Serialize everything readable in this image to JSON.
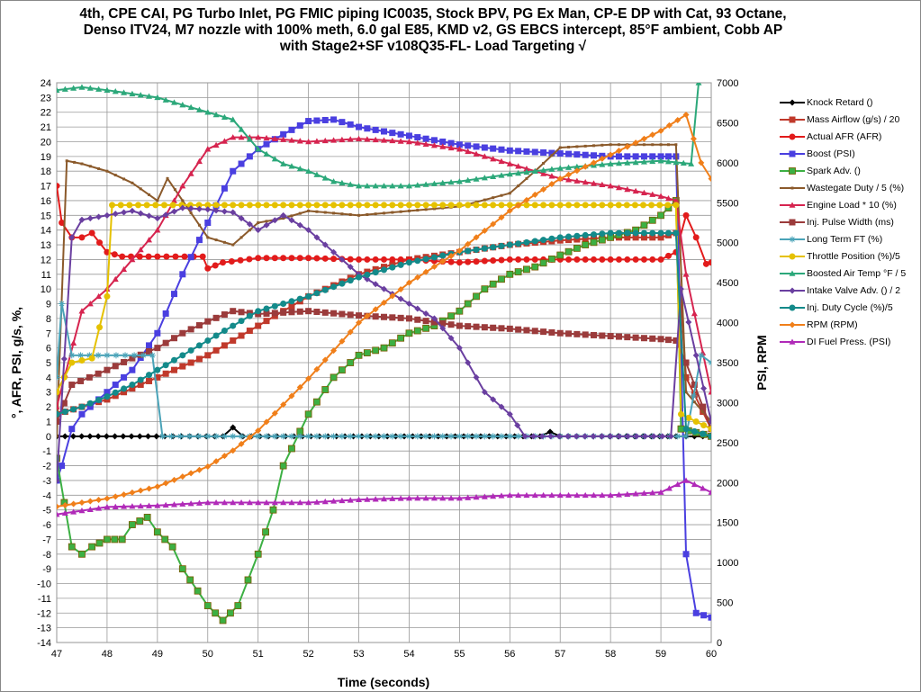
{
  "chart_data": {
    "type": "line",
    "title": "4th, CPE CAI, PG Turbo Inlet, PG FMIC piping  IC0035, Stock BPV, PG Ex Man, CP-E DP with Cat, 93 Octane, Denso ITV24, M7 nozzle with 100% meth,  6.0 gal E85, KMD v2, GS EBCS intercept,  85°F ambient, Cobb AP with Stage2+SF v108Q35-FL-   Load Targeting √",
    "xlabel": "Time (seconds)",
    "ylabel": "°, AFR, PSI, g/s, %,",
    "y2label": "PSI, RPM",
    "xlim": [
      47,
      60
    ],
    "ylim": [
      -14,
      24
    ],
    "y2lim": [
      0,
      7000
    ],
    "grid": true,
    "legend": "right",
    "series": [
      {
        "name": "Knock Retard ()",
        "color": "#000000",
        "marker": "diamond",
        "axis": "left",
        "x": [
          47,
          50.3,
          50.5,
          50.7,
          56.6,
          56.8,
          57,
          59.3,
          59.5,
          60
        ],
        "y": [
          0,
          0,
          0.6,
          0,
          0,
          0.3,
          0,
          0,
          0,
          0
        ]
      },
      {
        "name": "Mass Airflow (g/s) / 20",
        "color": "#c0392b",
        "marker": "square",
        "axis": "left",
        "x": [
          47,
          48,
          49,
          50,
          51,
          52,
          53,
          54,
          55,
          56,
          57,
          58,
          59,
          59.3,
          59.5,
          60
        ],
        "y": [
          1.5,
          2.5,
          4,
          5.5,
          7.5,
          9.5,
          11,
          12,
          12.5,
          13,
          13.3,
          13.5,
          13.5,
          13.8,
          4,
          0.5
        ]
      },
      {
        "name": "Actual AFR (AFR)",
        "color": "#e21b1b",
        "marker": "circle",
        "axis": "left",
        "x": [
          47,
          47.1,
          47.3,
          47.5,
          47.7,
          48,
          48.3,
          49,
          49.9,
          50,
          50.3,
          51,
          52,
          53,
          54,
          55,
          56,
          57,
          58,
          59,
          59.3,
          59.5,
          59.7,
          59.9,
          60
        ],
        "y": [
          17,
          14.5,
          13.5,
          13.5,
          13.8,
          12.5,
          12.2,
          12.2,
          12.2,
          11.4,
          11.8,
          12.1,
          12.1,
          12,
          12,
          11.8,
          12,
          12,
          12,
          12,
          12.5,
          15,
          13.5,
          11.7,
          11.8
        ]
      },
      {
        "name": "Boost (PSI)",
        "color": "#4a3fe0",
        "marker": "square",
        "axis": "left",
        "x": [
          47,
          47.1,
          47.3,
          47.5,
          48,
          48.5,
          49,
          49.5,
          50,
          50.5,
          51,
          51.5,
          52,
          52.5,
          53,
          53.5,
          54,
          55,
          56,
          57,
          58,
          59,
          59.3,
          59.5,
          59.7,
          60
        ],
        "y": [
          -3,
          -2,
          0.5,
          1.5,
          3,
          4.5,
          7,
          11,
          14.5,
          18,
          19.5,
          20.5,
          21.4,
          21.5,
          21,
          20.7,
          20.4,
          19.8,
          19.4,
          19.2,
          19,
          19,
          19,
          -8,
          -12,
          -12.3
        ]
      },
      {
        "name": "Spark Adv. ()",
        "color": "#3cb043",
        "marker": "square",
        "axis": "left",
        "x": [
          47,
          47.3,
          47.5,
          47.7,
          48,
          48.3,
          48.5,
          48.8,
          49,
          49.3,
          49.5,
          49.8,
          50,
          50.3,
          50.6,
          51,
          51.3,
          51.5,
          52,
          52.5,
          53,
          53.5,
          54,
          54.5,
          55,
          55.5,
          56,
          56.5,
          57,
          57.5,
          58,
          58.5,
          59,
          59.3,
          59.4,
          60
        ],
        "y": [
          -1.5,
          -7.5,
          -8,
          -7.5,
          -7,
          -7,
          -6,
          -5.5,
          -6.5,
          -7.5,
          -9,
          -10.5,
          -11.5,
          -12.5,
          -11.5,
          -8,
          -5,
          -2,
          1.5,
          4,
          5.5,
          6,
          7,
          7.5,
          8.5,
          10,
          11,
          11.5,
          12.3,
          13,
          13.5,
          14,
          15,
          16,
          0.5,
          0
        ]
      },
      {
        "name": "Wastegate Duty / 5 (%)",
        "color": "#8b5a2b",
        "marker": "small",
        "axis": "left",
        "x": [
          47,
          47.2,
          47.5,
          48,
          48.5,
          49,
          49.2,
          49.5,
          50,
          50.5,
          51,
          51.5,
          52,
          53,
          54,
          55,
          56,
          56.5,
          57,
          58,
          59,
          59.3,
          59.5,
          60
        ],
        "y": [
          0,
          18.7,
          18.5,
          18,
          17.2,
          16,
          17.5,
          16,
          13.5,
          13,
          14.5,
          14.8,
          15.3,
          15,
          15.3,
          15.6,
          16.5,
          18,
          19.6,
          19.8,
          19.8,
          19.8,
          3,
          1
        ]
      },
      {
        "name": "Engine Load * 10 (%)",
        "color": "#d6244f",
        "marker": "triangle",
        "axis": "left",
        "x": [
          47,
          47.5,
          48,
          48.5,
          49,
          49.5,
          50,
          50.5,
          51,
          52,
          53,
          54,
          55,
          56,
          57,
          58,
          59,
          59.3,
          59.5,
          60
        ],
        "y": [
          2,
          8.5,
          10,
          12,
          14,
          17,
          19.5,
          20.3,
          20.3,
          20,
          20.2,
          20,
          19.5,
          18.5,
          17.5,
          17,
          16.3,
          16,
          11,
          3
        ]
      },
      {
        "name": "Inj. Pulse Width (ms)",
        "color": "#9b3b3b",
        "marker": "square",
        "axis": "left",
        "x": [
          47,
          47.3,
          48,
          48.5,
          49,
          49.5,
          50,
          50.5,
          51,
          52,
          53,
          54,
          55,
          56,
          57,
          58,
          59,
          59.3,
          59.5,
          60
        ],
        "y": [
          1,
          3.5,
          4.5,
          5.3,
          6,
          7,
          7.8,
          8.5,
          8.3,
          8.5,
          8.2,
          8,
          7.5,
          7.3,
          7,
          6.8,
          6.6,
          6.5,
          5,
          0.5
        ]
      },
      {
        "name": "Long Term FT (%)",
        "color": "#4aa3b8",
        "marker": "star",
        "axis": "left",
        "x": [
          47,
          47.1,
          47.3,
          48,
          48.9,
          49.1,
          50,
          52,
          54,
          56,
          58,
          59.5,
          59.8,
          60
        ],
        "y": [
          4,
          9,
          5.5,
          5.5,
          5.5,
          0,
          0,
          0,
          0,
          0,
          0,
          0,
          5.5,
          5
        ]
      },
      {
        "name": "Throttle Position (%)/5",
        "color": "#e5c100",
        "marker": "circle",
        "axis": "left",
        "x": [
          47,
          47.3,
          47.7,
          48,
          48.1,
          50,
          52,
          54,
          56,
          58,
          59.3,
          59.4,
          60
        ],
        "y": [
          3,
          5,
          5.3,
          9.5,
          15.7,
          15.7,
          15.7,
          15.7,
          15.7,
          15.7,
          15.7,
          1.5,
          0.5
        ]
      },
      {
        "name": "Boosted Air Temp °F / 5",
        "color": "#2ca87a",
        "marker": "triangle",
        "axis": "left",
        "x": [
          47,
          47.5,
          48,
          49,
          50,
          50.5,
          51,
          51.5,
          52,
          52.5,
          53,
          54,
          55,
          56,
          57,
          58,
          59,
          59.6,
          59.75
        ],
        "y": [
          23.5,
          23.7,
          23.5,
          23,
          22,
          21.5,
          19.5,
          18.5,
          18,
          17.3,
          17,
          17,
          17.3,
          17.8,
          18.2,
          18.5,
          18.7,
          18.5,
          24
        ]
      },
      {
        "name": "Intake Valve Adv. () / 2",
        "color": "#6a3fa0",
        "marker": "diamond",
        "axis": "left",
        "x": [
          47,
          47.3,
          47.5,
          48,
          48.5,
          49,
          49.5,
          50,
          50.5,
          51,
          51.5,
          52,
          52.5,
          53,
          53.5,
          54,
          54.5,
          55,
          55.5,
          56,
          56.3,
          58,
          59.2,
          59.4,
          60
        ],
        "y": [
          -3,
          13.5,
          14.7,
          15,
          15.3,
          14.8,
          15.5,
          15.4,
          15.2,
          14,
          15,
          14,
          12.5,
          11,
          10,
          9,
          8,
          6,
          3,
          1.5,
          0,
          0,
          0,
          10,
          1
        ]
      },
      {
        "name": "Inj. Duty Cycle (%)/5",
        "color": "#138a8a",
        "marker": "circle",
        "axis": "left",
        "x": [
          47,
          47.5,
          48,
          48.5,
          49,
          49.5,
          50,
          50.5,
          51,
          52,
          53,
          54,
          55,
          56,
          57,
          58,
          59,
          59.3,
          59.5,
          60
        ],
        "y": [
          1.5,
          2,
          2.7,
          3.5,
          4.5,
          5.5,
          6.5,
          7.5,
          8.5,
          9.5,
          10.8,
          11.8,
          12.5,
          13,
          13.5,
          13.8,
          13.8,
          13.8,
          0.5,
          0
        ]
      },
      {
        "name": "RPM (RPM)",
        "color": "#f07f1a",
        "marker": "diamond",
        "axis": "right",
        "x": [
          47,
          48,
          49,
          50,
          50.5,
          51,
          52,
          53,
          54,
          55,
          56,
          57,
          58,
          59,
          59.5,
          59.8,
          60
        ],
        "y": [
          1700,
          1800,
          1950,
          2200,
          2400,
          2650,
          3300,
          4000,
          4500,
          4900,
          5400,
          5800,
          6100,
          6400,
          6600,
          6000,
          5800
        ]
      },
      {
        "name": "DI Fuel Press. (PSI)",
        "color": "#b02ab8",
        "marker": "triangle",
        "axis": "left",
        "x": [
          47,
          48,
          49,
          50,
          51,
          52,
          53,
          54,
          55,
          56,
          57,
          58,
          59,
          59.5,
          60
        ],
        "y": [
          -5.3,
          -4.8,
          -4.7,
          -4.5,
          -4.5,
          -4.5,
          -4.3,
          -4.2,
          -4.2,
          -4,
          -4,
          -4,
          -3.8,
          -3,
          -3.8
        ]
      }
    ]
  }
}
